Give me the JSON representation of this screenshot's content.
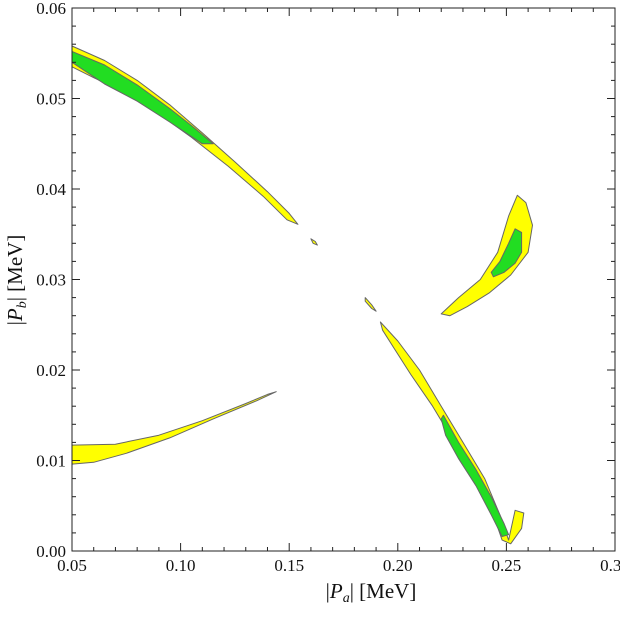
{
  "chart_data": {
    "type": "contour",
    "title": "",
    "xlabel": {
      "bar": "|",
      "var": "P",
      "sub": "a",
      "unit": " [MeV]"
    },
    "ylabel": {
      "bar": "|",
      "var": "P",
      "sub": "b",
      "unit": " [MeV]"
    },
    "xlim": [
      0.05,
      0.3
    ],
    "ylim": [
      0.0,
      0.06
    ],
    "x_ticks": [
      0.05,
      0.1,
      0.15,
      0.2,
      0.25,
      0.3
    ],
    "x_tick_labels": [
      "0.05",
      "0.10",
      "0.15",
      "0.20",
      "0.25",
      "0.30"
    ],
    "y_ticks": [
      0.0,
      0.01,
      0.02,
      0.03,
      0.04,
      0.05,
      0.06
    ],
    "y_tick_labels": [
      "0.00",
      "0.01",
      "0.02",
      "0.03",
      "0.04",
      "0.05",
      "0.06"
    ],
    "colors": {
      "outer": "#ffff00",
      "inner": "#22dd22",
      "edge": "#666666",
      "frame": "#222222"
    },
    "regions": [
      {
        "name": "upper-left-outer",
        "level": "outer",
        "points": [
          [
            0.05,
            0.0558
          ],
          [
            0.065,
            0.0542
          ],
          [
            0.08,
            0.052
          ],
          [
            0.095,
            0.0493
          ],
          [
            0.11,
            0.0462
          ],
          [
            0.125,
            0.043
          ],
          [
            0.14,
            0.0397
          ],
          [
            0.15,
            0.0373
          ],
          [
            0.154,
            0.0361
          ],
          [
            0.149,
            0.0366
          ],
          [
            0.138,
            0.0392
          ],
          [
            0.122,
            0.0425
          ],
          [
            0.105,
            0.0457
          ],
          [
            0.09,
            0.0483
          ],
          [
            0.075,
            0.0506
          ],
          [
            0.06,
            0.0523
          ],
          [
            0.05,
            0.0535
          ]
        ]
      },
      {
        "name": "upper-left-inner",
        "level": "inner",
        "points": [
          [
            0.05,
            0.0552
          ],
          [
            0.065,
            0.0537
          ],
          [
            0.08,
            0.0515
          ],
          [
            0.095,
            0.0489
          ],
          [
            0.105,
            0.047
          ],
          [
            0.115,
            0.045
          ],
          [
            0.11,
            0.045
          ],
          [
            0.095,
            0.0474
          ],
          [
            0.08,
            0.0497
          ],
          [
            0.065,
            0.0516
          ],
          [
            0.05,
            0.054
          ]
        ]
      },
      {
        "name": "lower-left-outer",
        "level": "outer",
        "points": [
          [
            0.05,
            0.0117
          ],
          [
            0.07,
            0.0118
          ],
          [
            0.09,
            0.0128
          ],
          [
            0.11,
            0.0144
          ],
          [
            0.13,
            0.0163
          ],
          [
            0.14,
            0.0173
          ],
          [
            0.144,
            0.0176
          ],
          [
            0.135,
            0.0166
          ],
          [
            0.115,
            0.0146
          ],
          [
            0.095,
            0.0125
          ],
          [
            0.075,
            0.0108
          ],
          [
            0.06,
            0.0098
          ],
          [
            0.05,
            0.0096
          ]
        ]
      },
      {
        "name": "upper-right-outer",
        "level": "outer",
        "points": [
          [
            0.22,
            0.0262
          ],
          [
            0.228,
            0.028
          ],
          [
            0.238,
            0.03
          ],
          [
            0.246,
            0.033
          ],
          [
            0.251,
            0.037
          ],
          [
            0.255,
            0.0393
          ],
          [
            0.259,
            0.0385
          ],
          [
            0.262,
            0.036
          ],
          [
            0.26,
            0.033
          ],
          [
            0.252,
            0.0305
          ],
          [
            0.242,
            0.0285
          ],
          [
            0.232,
            0.027
          ],
          [
            0.224,
            0.026
          ]
        ]
      },
      {
        "name": "upper-right-inner",
        "level": "inner",
        "points": [
          [
            0.243,
            0.0308
          ],
          [
            0.247,
            0.032
          ],
          [
            0.251,
            0.034
          ],
          [
            0.254,
            0.0356
          ],
          [
            0.257,
            0.0352
          ],
          [
            0.257,
            0.033
          ],
          [
            0.254,
            0.0318
          ],
          [
            0.249,
            0.0308
          ],
          [
            0.244,
            0.0303
          ]
        ]
      },
      {
        "name": "lower-right-outer",
        "level": "outer",
        "points": [
          [
            0.192,
            0.0253
          ],
          [
            0.2,
            0.0232
          ],
          [
            0.21,
            0.02
          ],
          [
            0.22,
            0.016
          ],
          [
            0.23,
            0.012
          ],
          [
            0.24,
            0.008
          ],
          [
            0.247,
            0.004
          ],
          [
            0.251,
            0.0012
          ],
          [
            0.254,
            0.0045
          ],
          [
            0.258,
            0.0042
          ],
          [
            0.257,
            0.0025
          ],
          [
            0.252,
            0.0008
          ],
          [
            0.248,
            0.0012
          ],
          [
            0.244,
            0.004
          ],
          [
            0.236,
            0.008
          ],
          [
            0.226,
            0.012
          ],
          [
            0.216,
            0.016
          ],
          [
            0.206,
            0.0195
          ],
          [
            0.198,
            0.0225
          ],
          [
            0.193,
            0.0244
          ]
        ]
      },
      {
        "name": "lower-right-inner",
        "level": "inner",
        "points": [
          [
            0.221,
            0.015
          ],
          [
            0.228,
            0.012
          ],
          [
            0.236,
            0.009
          ],
          [
            0.243,
            0.006
          ],
          [
            0.249,
            0.003
          ],
          [
            0.251,
            0.0018
          ],
          [
            0.248,
            0.0016
          ],
          [
            0.243,
            0.004
          ],
          [
            0.236,
            0.0072
          ],
          [
            0.228,
            0.0102
          ],
          [
            0.222,
            0.0128
          ],
          [
            0.22,
            0.0146
          ]
        ]
      },
      {
        "name": "small-island-1",
        "level": "outer",
        "points": [
          [
            0.16,
            0.0345
          ],
          [
            0.162,
            0.0342
          ],
          [
            0.163,
            0.0338
          ],
          [
            0.161,
            0.034
          ]
        ]
      },
      {
        "name": "small-island-2",
        "level": "outer",
        "points": [
          [
            0.185,
            0.028
          ],
          [
            0.188,
            0.0272
          ],
          [
            0.19,
            0.0265
          ],
          [
            0.188,
            0.0268
          ],
          [
            0.185,
            0.0276
          ]
        ]
      }
    ]
  }
}
